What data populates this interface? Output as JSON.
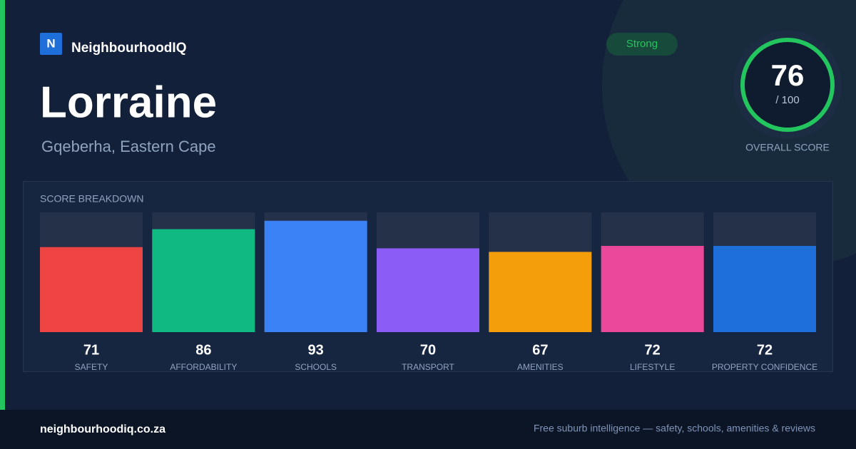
{
  "brand": {
    "icon": "N",
    "name": "NeighbourhoodIQ"
  },
  "suburb": {
    "name": "Lorraine",
    "location": "Gqeberha, Eastern Cape"
  },
  "badge": "Strong",
  "overall": {
    "score": 76,
    "max": {
      "value": 100,
      "label": "/ 100"
    },
    "label": "OVERALL SCORE"
  },
  "breakdown": {
    "title": "SCORE BREAKDOWN",
    "items": [
      {
        "label": "SAFETY",
        "value": 71,
        "color": "#ef4444"
      },
      {
        "label": "AFFORDABILITY",
        "value": 86,
        "color": "#10b981"
      },
      {
        "label": "SCHOOLS",
        "value": 93,
        "color": "#3b82f6"
      },
      {
        "label": "TRANSPORT",
        "value": 70,
        "color": "#8b5cf6"
      },
      {
        "label": "AMENITIES",
        "value": 67,
        "color": "#f59e0b"
      },
      {
        "label": "LIFESTYLE",
        "value": 72,
        "color": "#ec4899"
      },
      {
        "label": "PROPERTY CONFIDENCE",
        "value": 72,
        "color": "#1e6fd9"
      }
    ]
  },
  "footer": {
    "site": "neighbourhoodiq.co.za",
    "tagline": "Free suburb intelligence — safety, schools, amenities & reviews"
  }
}
